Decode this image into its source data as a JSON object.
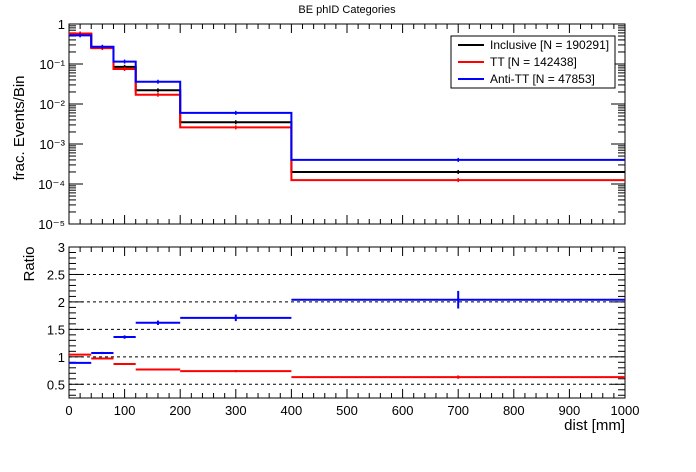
{
  "chart_data": [
    {
      "type": "line",
      "title": "BE phID Categories",
      "ylabel": "frac. Events/Bin",
      "xlabel": "",
      "xlim": [
        0,
        1000
      ],
      "ylim": [
        1e-05,
        1
      ],
      "yscale": "log",
      "y_tick_labels": [
        "10⁻⁵",
        "10⁻⁴",
        "10⁻³",
        "10⁻²",
        "10⁻¹",
        "1"
      ],
      "bin_edges": [
        0,
        40,
        80,
        120,
        200,
        400,
        1000
      ],
      "legend_position": "top-right",
      "series": [
        {
          "name": "Inclusive [N = 190291]",
          "color": "#000000",
          "values": [
            0.56,
            0.26,
            0.085,
            0.022,
            0.0035,
            0.0002
          ]
        },
        {
          "name": "TT [N = 142438]",
          "color": "#ff0000",
          "values": [
            0.58,
            0.25,
            0.075,
            0.017,
            0.0026,
            0.000125
          ]
        },
        {
          "name": "Anti-TT [N = 47853]",
          "color": "#0000ff",
          "values": [
            0.52,
            0.27,
            0.115,
            0.036,
            0.006,
            0.0004
          ]
        }
      ]
    },
    {
      "type": "line",
      "ylabel": "Ratio",
      "xlabel": "dist [mm]",
      "xlim": [
        0,
        1000
      ],
      "ylim": [
        0.25,
        3
      ],
      "y_ticks": [
        0.5,
        1,
        1.5,
        2,
        2.5,
        3
      ],
      "y_tick_labels": [
        "0.5",
        "1",
        "1.5",
        "2",
        "2.5",
        "3"
      ],
      "x_ticks": [
        0,
        100,
        200,
        300,
        400,
        500,
        600,
        700,
        800,
        900,
        1000
      ],
      "x_tick_labels": [
        "0",
        "100",
        "200",
        "300",
        "400",
        "500",
        "600",
        "700",
        "800",
        "900",
        "1000"
      ],
      "dashed_gridlines": [
        0.5,
        1,
        1.5,
        2,
        2.5
      ],
      "bin_edges": [
        0,
        40,
        80,
        120,
        200,
        400,
        1000
      ],
      "series": [
        {
          "color": "#ff0000",
          "values": [
            1.04,
            0.97,
            0.87,
            0.77,
            0.74,
            0.63
          ],
          "errors": [
            0.01,
            0.01,
            0.01,
            0.01,
            0.02,
            0.03
          ]
        },
        {
          "color": "#0000ff",
          "values": [
            0.89,
            1.07,
            1.36,
            1.62,
            1.71,
            2.04
          ],
          "errors": [
            0.01,
            0.02,
            0.03,
            0.04,
            0.06,
            0.16
          ]
        }
      ]
    }
  ]
}
